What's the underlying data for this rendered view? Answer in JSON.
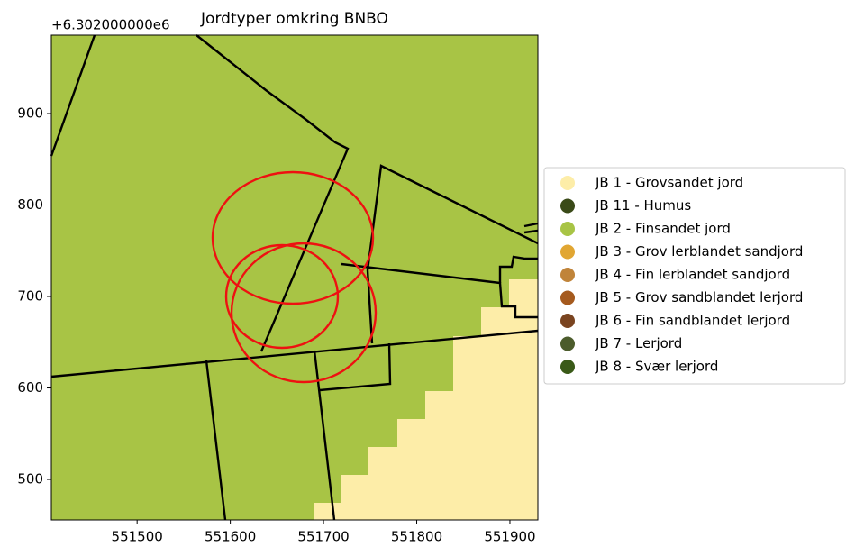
{
  "chart_data": {
    "type": "map",
    "title": "Jordtyper omkring BNBO",
    "y_offset_label": "+6.302000000e6",
    "xlim": [
      551408,
      551930
    ],
    "ylim": [
      455.7,
      985.7
    ],
    "xticks": [
      551500,
      551600,
      551700,
      551800,
      551900
    ],
    "yticks": [
      500,
      600,
      700,
      800,
      900
    ],
    "legend_position": "right",
    "legend": [
      {
        "name": "JB 1 - Grovsandet jord",
        "color": "#fdeda8"
      },
      {
        "name": "JB 11 - Humus",
        "color": "#3a4a18"
      },
      {
        "name": "JB 2 - Finsandet jord",
        "color": "#a8c445"
      },
      {
        "name": "JB 3 - Grov lerblandet sandjord",
        "color": "#e1a632"
      },
      {
        "name": "JB 4 - Fin lerblandet sandjord",
        "color": "#c0843a"
      },
      {
        "name": "JB 5 - Grov sandblandet lerjord",
        "color": "#a55a1e"
      },
      {
        "name": "JB 6 - Fin sandblandet lerjord",
        "color": "#7a4420"
      },
      {
        "name": "JB 7 - Lerjord",
        "color": "#4c5c2c"
      },
      {
        "name": "JB 8 - Svær lerjord",
        "color": "#3a5a18"
      }
    ]
  }
}
